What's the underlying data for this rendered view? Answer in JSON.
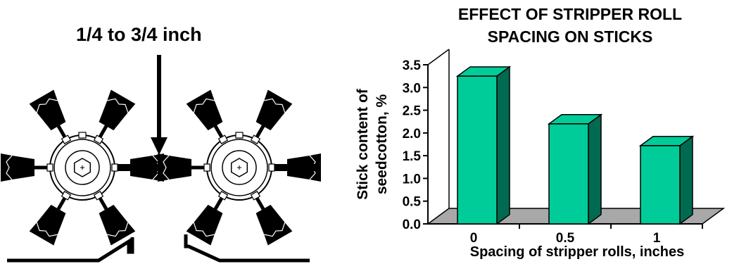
{
  "diagram": {
    "spacing_label": "1/4 to 3/4 inch"
  },
  "chart_data": {
    "type": "bar",
    "title_line1": "EFFECT  OF STRIPPER ROLL",
    "title_line2": "SPACING ON STICKS",
    "ylabel_line1": "Stick content of",
    "ylabel_line2": "seedcotton, %",
    "xlabel": "Spacing of stripper rolls, inches",
    "categories": [
      "0",
      "0.5",
      "1"
    ],
    "values": [
      3.25,
      2.2,
      1.72
    ],
    "ylim": [
      0,
      3.5
    ],
    "yticks": [
      "0.0",
      "0.5",
      "1.0",
      "1.5",
      "2.0",
      "2.5",
      "3.0",
      "3.5"
    ],
    "bar_color": "#00cc99",
    "bar_side_color": "#006b50",
    "floor_color": "#a8a8a8",
    "grid": false,
    "legend": "none"
  }
}
